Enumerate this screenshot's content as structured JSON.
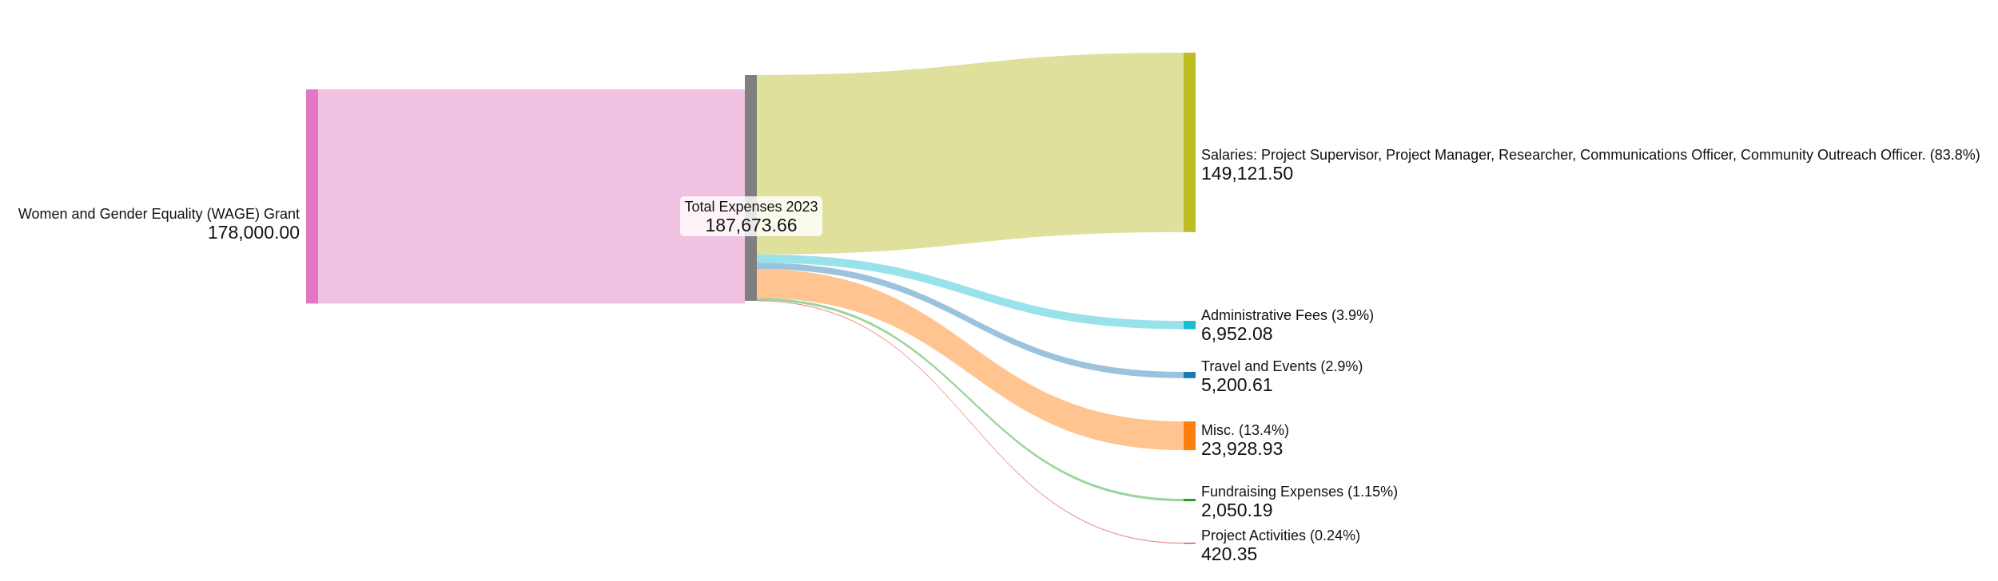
{
  "chart_data": {
    "type": "sankey",
    "nodes": [
      {
        "id": "source",
        "label": "Women and Gender Equality (WAGE) Grant",
        "value_text": "178,000.00",
        "value": 178000.0,
        "color": "#e377c2",
        "link_color": "#f0c1e1"
      },
      {
        "id": "total",
        "label": "Total Expenses 2023",
        "value_text": "187,673.66",
        "value": 187673.66,
        "color": "#7f7f7f"
      },
      {
        "id": "salaries",
        "label": "Salaries: Project Supervisor, Project Manager, Researcher, Communications Officer, Community Outreach Officer. (83.8%)",
        "value_text": "149,121.50",
        "value": 149121.5,
        "color": "#bcbd22",
        "link_color": "#e0e09d"
      },
      {
        "id": "admin",
        "label": "Administrative Fees (3.9%)",
        "value_text": "6,952.08",
        "value": 6952.08,
        "color": "#17becf",
        "link_color": "#9ae2ea"
      },
      {
        "id": "travel",
        "label": "Travel and Events (2.9%)",
        "value_text": "5,200.61",
        "value": 5200.61,
        "color": "#1f77b4",
        "link_color": "#9cc3dd"
      },
      {
        "id": "misc",
        "label": "Misc. (13.4%)",
        "value_text": "23,928.93",
        "value": 23928.93,
        "color": "#ff7f0e",
        "link_color": "#ffc490"
      },
      {
        "id": "fundraising",
        "label": "Fundraising Expenses (1.15%)",
        "value_text": "2,050.19",
        "value": 2050.19,
        "color": "#2ca02c",
        "link_color": "#9cd49c"
      },
      {
        "id": "projects",
        "label": "Project Activities (0.24%)",
        "value_text": "420.35",
        "value": 420.35,
        "color": "#d62728",
        "link_color": "#ef8f8f"
      }
    ],
    "links": [
      {
        "source": "source",
        "target": "total",
        "value": 178000.0
      },
      {
        "source": "total",
        "target": "salaries",
        "value": 149121.5
      },
      {
        "source": "total",
        "target": "admin",
        "value": 6952.08
      },
      {
        "source": "total",
        "target": "travel",
        "value": 5200.61
      },
      {
        "source": "total",
        "target": "misc",
        "value": 23928.93
      },
      {
        "source": "total",
        "target": "fundraising",
        "value": 2050.19
      },
      {
        "source": "total",
        "target": "projects",
        "value": 420.35
      }
    ]
  }
}
